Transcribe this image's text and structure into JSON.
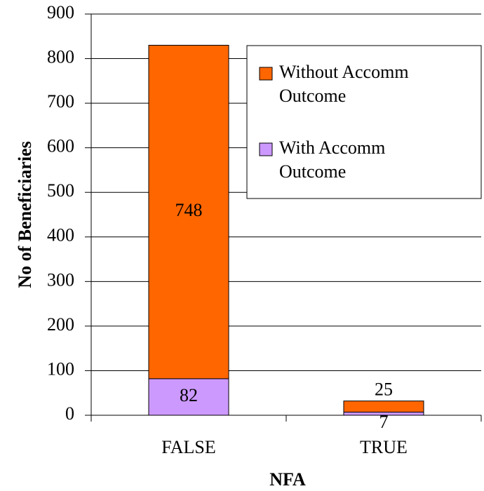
{
  "chart_data": {
    "type": "stacked_bar",
    "xlabel": "NFA",
    "ylabel": "No of Beneficiaries",
    "categories": [
      "FALSE",
      "TRUE"
    ],
    "series": [
      {
        "name": "With Accomm Outcome",
        "color": "#cc99ff",
        "values": [
          82,
          7
        ]
      },
      {
        "name": "Without Accomm Outcome",
        "color": "#ff6600",
        "values": [
          748,
          25
        ]
      }
    ],
    "ylim": [
      0,
      900
    ],
    "yticks": [
      0,
      100,
      200,
      300,
      400,
      500,
      600,
      700,
      800,
      900
    ],
    "grid": true,
    "legend": "upper right"
  }
}
